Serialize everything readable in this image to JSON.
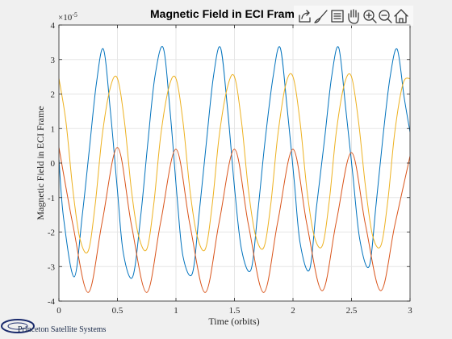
{
  "toolbar": {
    "icons": [
      "export-icon",
      "brush-icon",
      "legend-icon",
      "pan-hand-icon",
      "zoom-in-icon",
      "zoom-out-icon",
      "home-icon"
    ]
  },
  "branding": {
    "text": "Princeton Satellite Systems",
    "color": "#1a2a6c"
  },
  "chart_data": {
    "type": "line",
    "title": "Magnetic Field in ECI Fram",
    "xlabel": "Time (orbits)",
    "ylabel": "Magnetic Field in ECI Frame",
    "y_exponent_label": "×10",
    "y_exponent_power": "-5",
    "xlim": [
      0,
      3
    ],
    "ylim": [
      -4,
      4
    ],
    "x_ticks": [
      0,
      0.5,
      1,
      1.5,
      2,
      2.5,
      3
    ],
    "x_tick_labels": [
      "0",
      "0.5",
      "1",
      "1.5",
      "2",
      "2.5",
      "3"
    ],
    "y_ticks": [
      -4,
      -3,
      -2,
      -1,
      0,
      1,
      2,
      3,
      4
    ],
    "y_tick_labels": [
      "-4",
      "-3",
      "-2",
      "-1",
      "0",
      "1",
      "2",
      "3",
      "4"
    ],
    "grid": true,
    "series": [
      {
        "color": "#0072BD",
        "x": [
          0,
          0.04,
          0.13,
          0.2,
          0.26,
          0.32,
          0.38,
          0.44,
          0.5,
          0.55,
          0.63,
          0.7,
          0.76,
          0.82,
          0.89,
          0.95,
          1.01,
          1.06,
          1.14,
          1.2,
          1.26,
          1.32,
          1.38,
          1.44,
          1.5,
          1.56,
          1.64,
          1.7,
          1.76,
          1.83,
          1.89,
          1.95,
          2.01,
          2.06,
          2.14,
          2.2,
          2.27,
          2.33,
          2.39,
          2.45,
          2.51,
          2.57,
          2.65,
          2.71,
          2.77,
          2.83,
          2.89,
          2.95,
          3.0
        ],
        "y": [
          0.1,
          -1.6,
          -3.3,
          -1.5,
          0.4,
          2.3,
          3.3,
          1.5,
          -0.8,
          -2.6,
          -3.3,
          -1.5,
          0.6,
          2.5,
          3.35,
          1.5,
          -1.0,
          -2.7,
          -3.2,
          -1.4,
          0.6,
          2.5,
          3.35,
          1.6,
          -0.7,
          -2.5,
          -3.1,
          -1.4,
          0.6,
          2.5,
          3.35,
          1.6,
          -0.5,
          -2.3,
          -3.1,
          -1.3,
          0.7,
          2.5,
          3.35,
          1.6,
          -0.3,
          -2.2,
          -3.0,
          -1.2,
          0.8,
          2.5,
          3.3,
          1.9,
          0.9
        ]
      },
      {
        "color": "#D95319",
        "x": [
          0,
          0.12,
          0.25,
          0.37,
          0.5,
          0.62,
          0.75,
          0.87,
          1.0,
          1.12,
          1.25,
          1.37,
          1.5,
          1.62,
          1.75,
          1.87,
          2.0,
          2.12,
          2.25,
          2.37,
          2.5,
          2.62,
          2.75,
          2.87,
          3.0
        ],
        "y": [
          0.45,
          -1.8,
          -3.75,
          -1.7,
          0.45,
          -1.8,
          -3.75,
          -1.7,
          0.4,
          -1.8,
          -3.75,
          -1.7,
          0.4,
          -1.8,
          -3.75,
          -1.7,
          0.4,
          -1.8,
          -3.7,
          -1.7,
          0.3,
          -1.8,
          -3.7,
          -1.8,
          0.2
        ]
      },
      {
        "color": "#EDB120",
        "x": [
          0,
          0.06,
          0.12,
          0.18,
          0.25,
          0.31,
          0.37,
          0.44,
          0.5,
          0.56,
          0.62,
          0.68,
          0.75,
          0.81,
          0.87,
          0.94,
          1.0,
          1.06,
          1.12,
          1.18,
          1.25,
          1.31,
          1.37,
          1.44,
          1.5,
          1.56,
          1.62,
          1.68,
          1.75,
          1.81,
          1.87,
          1.94,
          2.0,
          2.06,
          2.12,
          2.18,
          2.25,
          2.31,
          2.37,
          2.44,
          2.5,
          2.56,
          2.62,
          2.68,
          2.75,
          2.81,
          2.87,
          2.94,
          3.0
        ],
        "y": [
          2.45,
          1.2,
          -0.8,
          -2.2,
          -2.55,
          -1.2,
          0.8,
          2.2,
          2.45,
          1.2,
          -0.8,
          -2.1,
          -2.5,
          -1.2,
          0.8,
          2.2,
          2.45,
          1.2,
          -0.8,
          -2.1,
          -2.5,
          -1.2,
          0.8,
          2.2,
          2.5,
          1.2,
          -0.8,
          -2.1,
          -2.45,
          -1.2,
          0.8,
          2.3,
          2.5,
          1.2,
          -0.8,
          -2.1,
          -2.4,
          -1.1,
          0.9,
          2.3,
          2.5,
          1.2,
          -0.7,
          -2.1,
          -2.4,
          -1.1,
          0.9,
          2.3,
          2.45
        ]
      }
    ]
  }
}
